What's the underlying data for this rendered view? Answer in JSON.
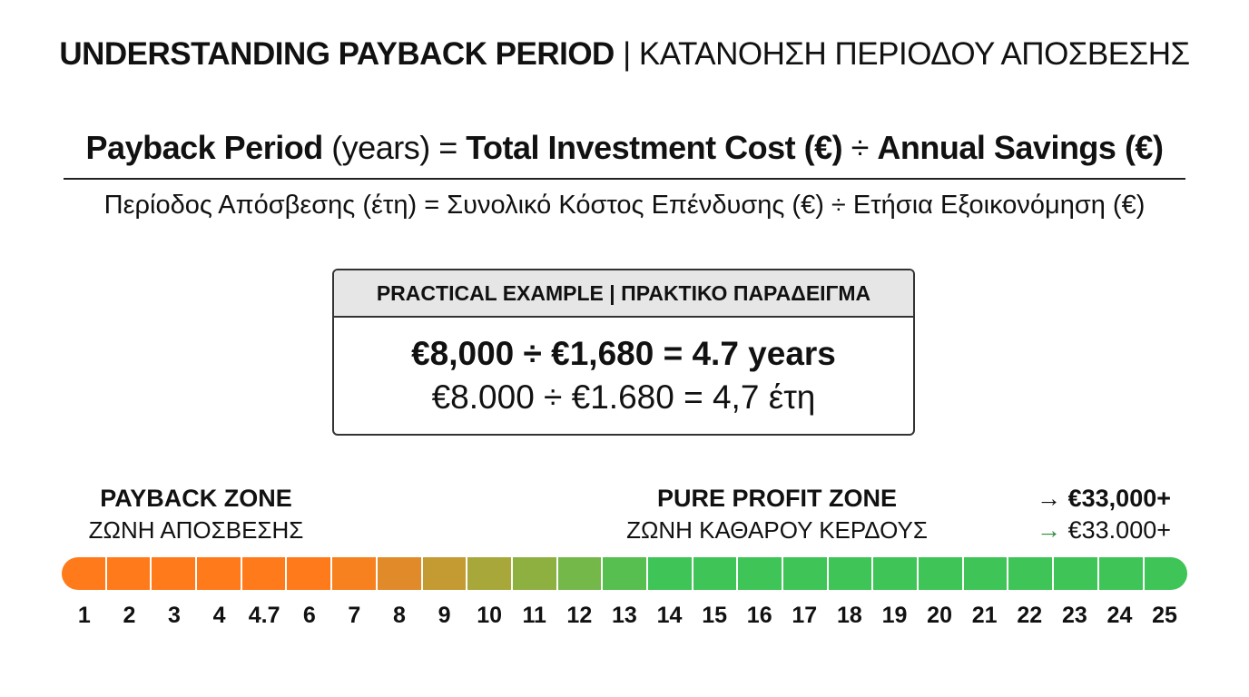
{
  "header": {
    "title_en": "UNDERSTANDING PAYBACK PERIOD",
    "separator": " | ",
    "title_gr": "ΚΑΤΑΝΟΗΣΗ ΠΕΡΙΟΔΟΥ ΑΠΟΣΒΕΣΗΣ"
  },
  "formula": {
    "term1": "Payback Period",
    "unit1": " (years) = ",
    "term2": "Total Investment Cost (€)",
    "op": " ÷ ",
    "term3": "Annual Savings (€)",
    "greek": "Περίοδος Απόσβεσης (έτη) = Συνολικό Κόστος Επένδυσης (€) ÷ Ετήσια Εξοικονόμηση (€)"
  },
  "example": {
    "header": "PRACTICAL EXAMPLE | ΠΡΑΚΤΙΚΟ ΠΑΡΑΔΕΙΓΜΑ",
    "line_en": "€8,000 ÷ €1,680 = 4.7 years",
    "line_gr": "€8.000 ÷ €1.680 = 4,7 έτη"
  },
  "zones": {
    "payback_title": "PAYBACK ZONE",
    "payback_subtitle": "ΖΩΝΗ ΑΠΟΣΒΕΣΗΣ",
    "profit_title": "PURE PROFIT ZONE",
    "profit_subtitle": "ΖΩΝΗ ΚΑΘΑΡΟΥ ΚΕΡΔΟΥΣ"
  },
  "outcome": {
    "arrow": "→",
    "value_en": "€33,000+",
    "value_gr": "€33.000+"
  },
  "timeline": {
    "ticks": [
      "1",
      "2",
      "3",
      "4",
      "4.7",
      "6",
      "7",
      "8",
      "9",
      "10",
      "11",
      "12",
      "13",
      "14",
      "15",
      "16",
      "17",
      "18",
      "19",
      "20",
      "21",
      "22",
      "23",
      "24",
      "25"
    ],
    "segment_colors": [
      "#ff7a1a",
      "#ff7a1a",
      "#ff7a1a",
      "#ff7a1a",
      "#ff7a1a",
      "#ff7a1a",
      "#f7801f",
      "#e08a2a",
      "#c49a33",
      "#a8a83a",
      "#8eb041",
      "#74b849",
      "#56bf4f",
      "#3fc457",
      "#3fc457",
      "#3fc457",
      "#3fc457",
      "#3fc457",
      "#3fc457",
      "#3fc457",
      "#3fc457",
      "#3fc457",
      "#3fc457",
      "#3fc457",
      "#3fc457"
    ],
    "payback_color": "#ff7a1a",
    "profit_color": "#3fc457"
  }
}
